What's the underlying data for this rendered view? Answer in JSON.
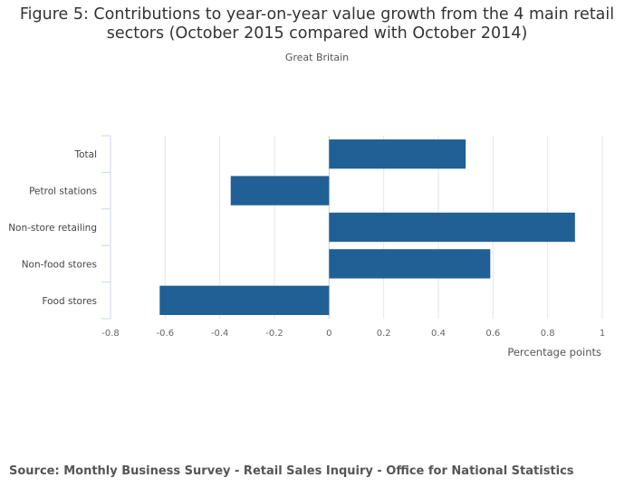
{
  "chart_data": {
    "type": "bar",
    "orientation": "horizontal",
    "title_line1": "Figure 5: Contributions to year-on-year value growth from the 4 main retail",
    "title_line2": "sectors (October 2015 compared with October 2014)",
    "subtitle": "Great Britain",
    "xlabel": "Percentage points",
    "ylabel": "",
    "categories": [
      "Total",
      "Petrol stations",
      "Non-store retailing",
      "Non-food stores",
      "Food stores"
    ],
    "values": [
      0.5,
      -0.36,
      0.9,
      0.59,
      -0.62
    ],
    "xlim": [
      -0.8,
      1
    ],
    "xticks": [
      -0.8,
      -0.6,
      -0.4,
      -0.2,
      0,
      0.2,
      0.4,
      0.6,
      0.8,
      1
    ],
    "xtick_labels": [
      "-0.8",
      "-0.6",
      "-0.4",
      "-0.2",
      "0",
      "0.2",
      "0.4",
      "0.6",
      "0.8",
      "1"
    ],
    "grid": true,
    "bar_color": "#206095",
    "source": "Source: Monthly Business Survey - Retail Sales Inquiry - Office for National Statistics"
  }
}
